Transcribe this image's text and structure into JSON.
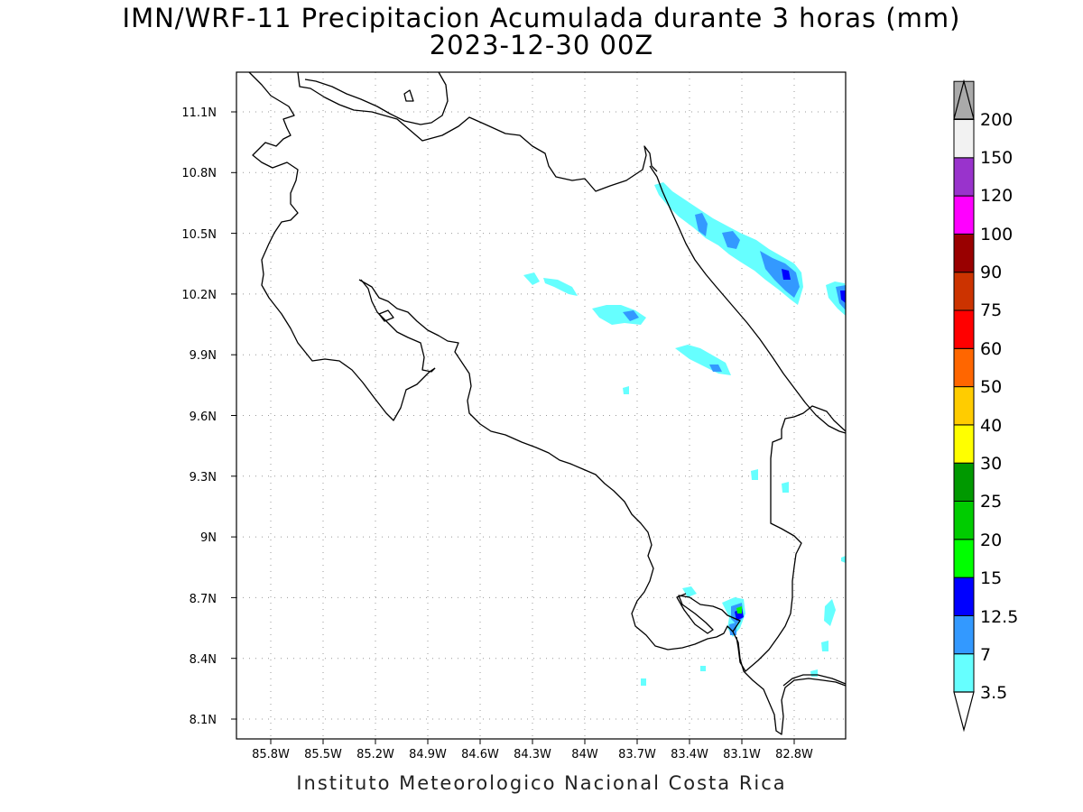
{
  "header": {
    "title_line1": "IMN/WRF-11 Precipitacion Acumulada durante 3 horas (mm)",
    "title_line2": "2023-12-30 00Z"
  },
  "footer": {
    "credit": "Instituto Meteorologico Nacional Costa Rica"
  },
  "map": {
    "lat_labels": [
      "11.1N",
      "10.8N",
      "10.5N",
      "10.2N",
      "9.9N",
      "9.6N",
      "9.3N",
      "9N",
      "8.7N",
      "8.4N",
      "8.1N"
    ],
    "lon_labels": [
      "85.8W",
      "85.5W",
      "85.2W",
      "84.9W",
      "84.6W",
      "84.3W",
      "84W",
      "83.7W",
      "83.4W",
      "83.1W",
      "82.8W"
    ],
    "grid": "dotted",
    "coastline_color": "#000000"
  },
  "colorbar": {
    "levels": [
      {
        "label": "3.5",
        "color": "#66ffff"
      },
      {
        "label": "7",
        "color": "#3399ff"
      },
      {
        "label": "12.5",
        "color": "#0000ff"
      },
      {
        "label": "15",
        "color": "#00ff00"
      },
      {
        "label": "20",
        "color": "#00cc00"
      },
      {
        "label": "25",
        "color": "#009900"
      },
      {
        "label": "30",
        "color": "#ffff00"
      },
      {
        "label": "40",
        "color": "#ffcc00"
      },
      {
        "label": "50",
        "color": "#ff6600"
      },
      {
        "label": "60",
        "color": "#ff0000"
      },
      {
        "label": "75",
        "color": "#cc3300"
      },
      {
        "label": "90",
        "color": "#990000"
      },
      {
        "label": "100",
        "color": "#ff00ff"
      },
      {
        "label": "120",
        "color": "#9933cc"
      },
      {
        "label": "150",
        "color": "#f2f2f2"
      },
      {
        "label": "200",
        "color": "#aaaaaa"
      }
    ],
    "below_color": "#ffffff",
    "above_color": "#aaaaaa"
  }
}
